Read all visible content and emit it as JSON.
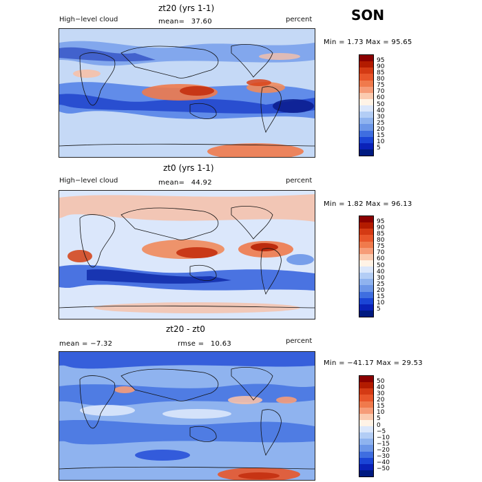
{
  "season": "SON",
  "panels": [
    {
      "title": "zt20 (yrs 1-1)",
      "left_label": "High−level cloud",
      "mean_label": "mean=",
      "mean_value": "37.60",
      "units": "percent",
      "minmax": "Min =    1.73 Max =   95.65"
    },
    {
      "title": "zt0 (yrs 1-1)",
      "left_label": "High−level cloud",
      "mean_label": "mean=",
      "mean_value": "44.92",
      "units": "percent",
      "minmax": "Min =    1.82 Max =   96.13"
    },
    {
      "title": "zt20 - zt0",
      "left_label": "mean =    −7.32",
      "mean_label": "rmse =",
      "mean_value": "10.63",
      "units": "percent",
      "minmax": "Min = −41.17 Max =   29.53"
    }
  ],
  "chart_data": {
    "type": "heatmap",
    "colorbars": [
      {
        "levels": [
          "95",
          "90",
          "85",
          "80",
          "75",
          "70",
          "60",
          "50",
          "40",
          "30",
          "25",
          "20",
          "15",
          "10",
          "5"
        ],
        "colors": [
          "#8b0000",
          "#b31b00",
          "#d43a14",
          "#e8562b",
          "#f07a4c",
          "#f69c78",
          "#fbcbb0",
          "#fff3e6",
          "#dbe7fb",
          "#b3cdf5",
          "#8fb3ef",
          "#6c96e8",
          "#3f6ee0",
          "#1b45d6",
          "#0a22b8",
          "#001a80"
        ]
      },
      {
        "levels": [
          "95",
          "90",
          "85",
          "80",
          "75",
          "70",
          "60",
          "50",
          "40",
          "30",
          "25",
          "20",
          "15",
          "10",
          "5"
        ],
        "colors": [
          "#8b0000",
          "#b31b00",
          "#d43a14",
          "#e8562b",
          "#f07a4c",
          "#f69c78",
          "#fbcbb0",
          "#fff3e6",
          "#dbe7fb",
          "#b3cdf5",
          "#8fb3ef",
          "#6c96e8",
          "#3f6ee0",
          "#1b45d6",
          "#0a22b8",
          "#001a80"
        ]
      },
      {
        "levels": [
          "50",
          "40",
          "30",
          "20",
          "15",
          "10",
          "5",
          "0",
          "−5",
          "−10",
          "−15",
          "−20",
          "−30",
          "−40",
          "−50"
        ],
        "colors": [
          "#8b0000",
          "#b31b00",
          "#d43a14",
          "#e8562b",
          "#f07a4c",
          "#f69c78",
          "#fbcbb0",
          "#fff3e6",
          "#dbe7fb",
          "#b3cdf5",
          "#8fb3ef",
          "#6c96e8",
          "#3f6ee0",
          "#1b45d6",
          "#0a22b8",
          "#001a80"
        ]
      }
    ]
  }
}
